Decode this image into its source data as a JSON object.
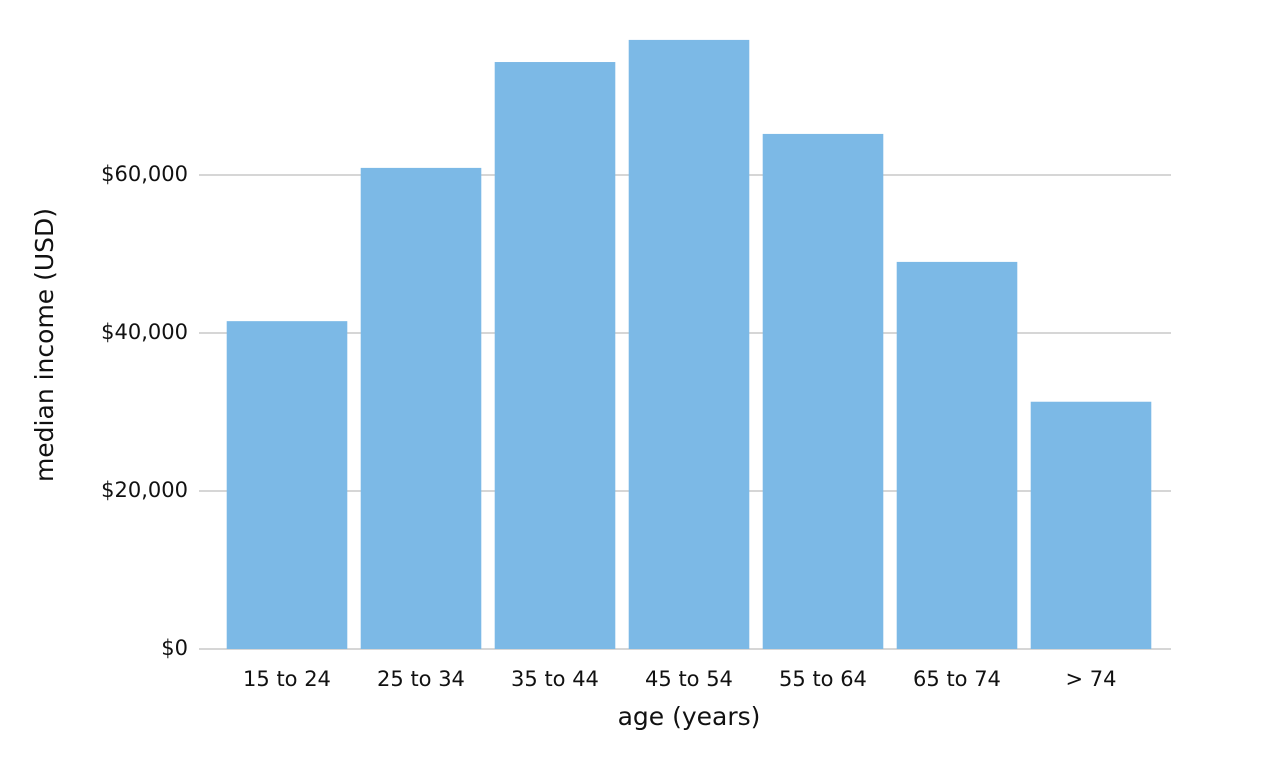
{
  "chart_data": {
    "type": "bar",
    "x_label": "age (years)",
    "y_label": "median income (USD)",
    "categories": [
      "15 to 24",
      "25 to 34",
      "35 to 44",
      "45 to 54",
      "55 to 64",
      "65 to 74",
      "> 74"
    ],
    "values": [
      41500,
      60900,
      74300,
      77100,
      65200,
      49000,
      31300
    ],
    "color": "#7cb9e6",
    "ylim": [
      0,
      80000
    ],
    "yticks": [
      {
        "value": 0,
        "label": "$0"
      },
      {
        "value": 20000,
        "label": "$20,000"
      },
      {
        "value": 40000,
        "label": "$40,000"
      },
      {
        "value": 60000,
        "label": "$60,000"
      }
    ],
    "grid": true
  }
}
